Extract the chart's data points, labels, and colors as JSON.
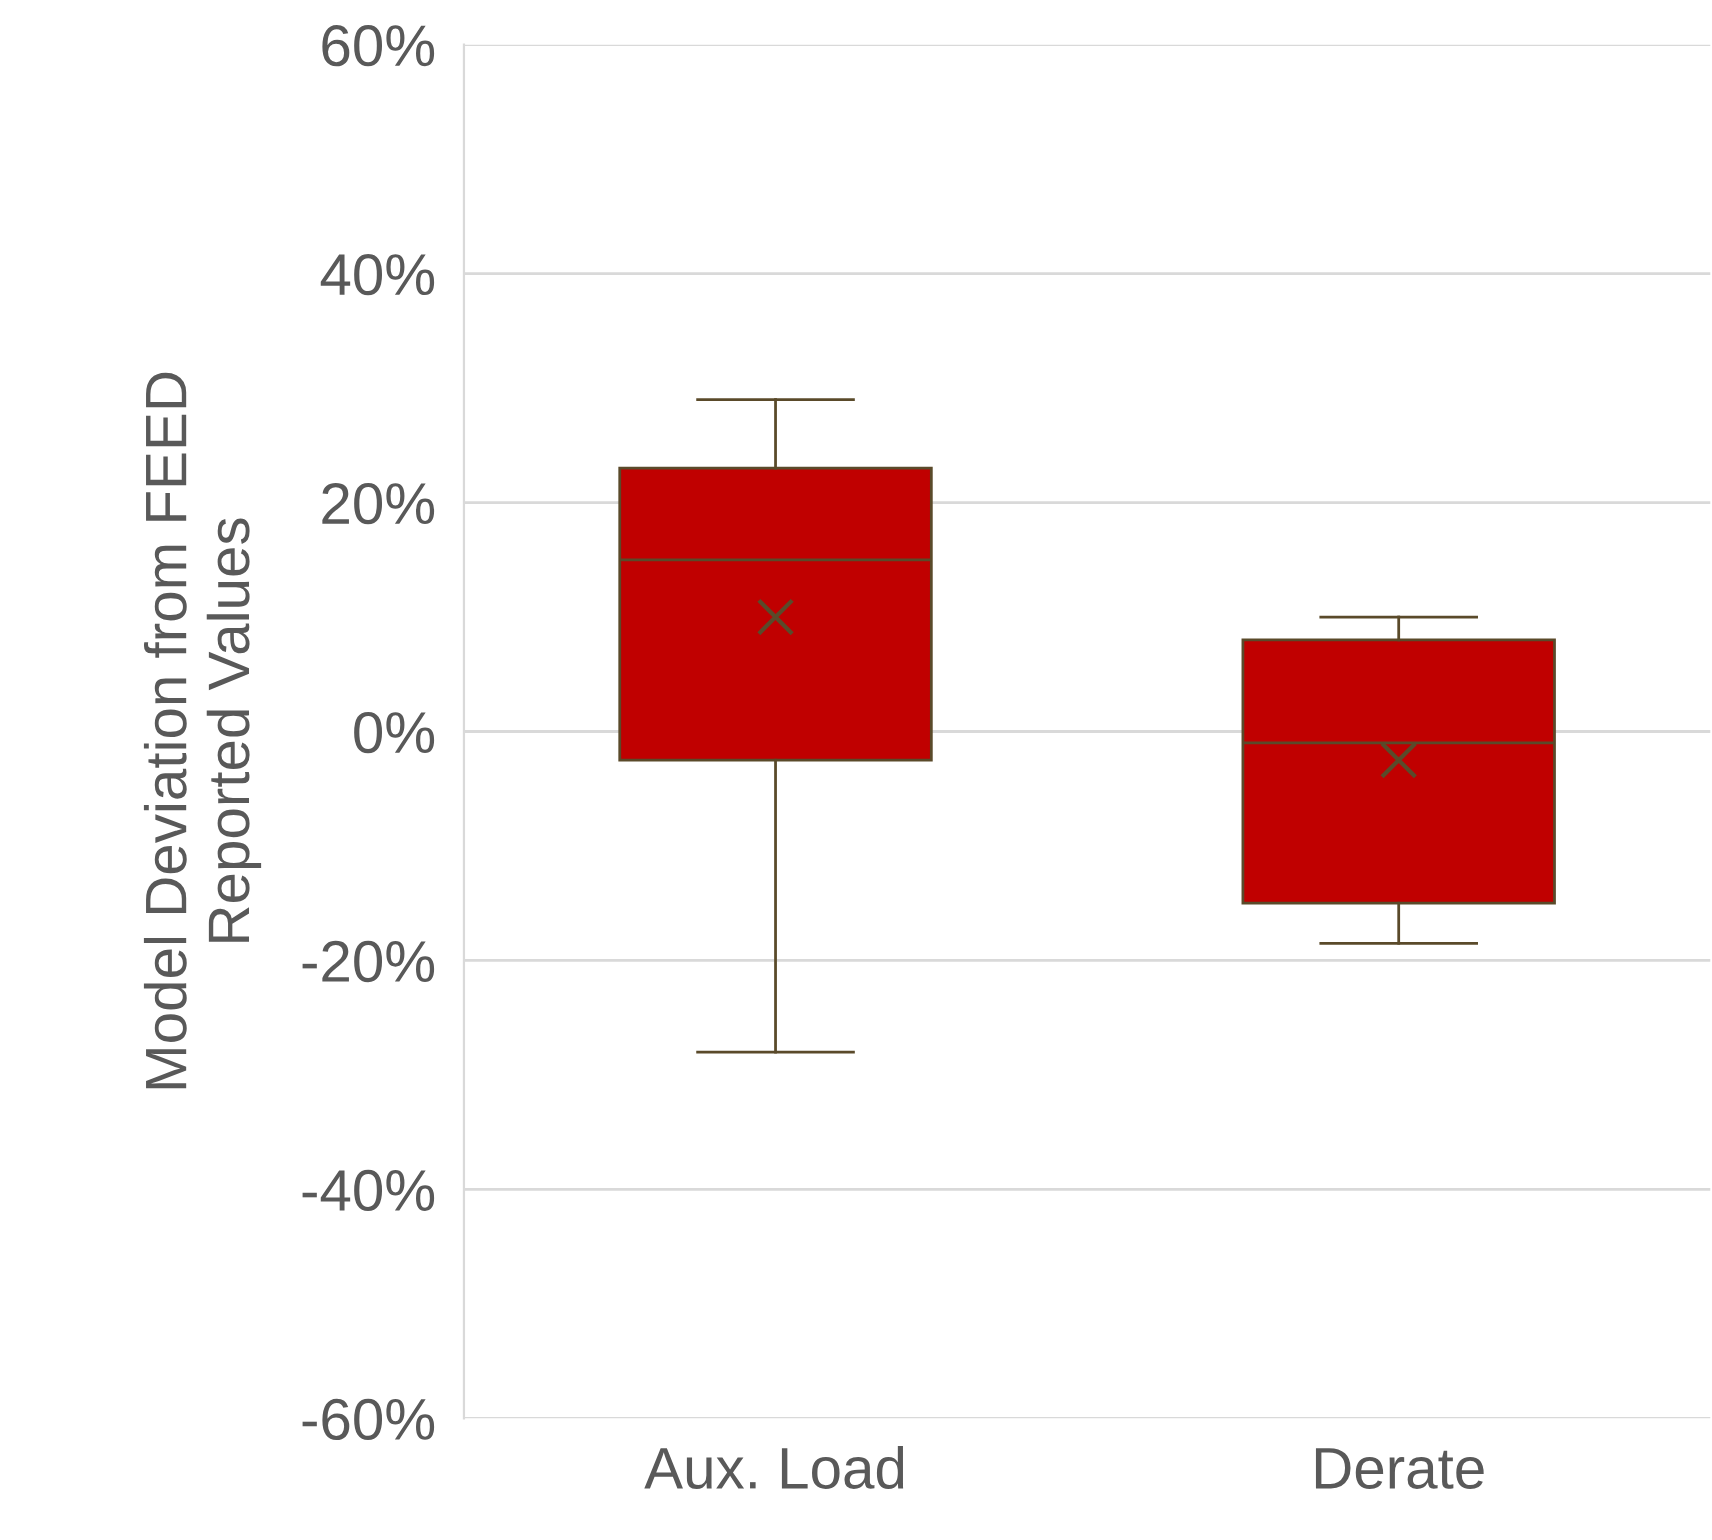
{
  "chart_data": {
    "type": "box",
    "ylabel": "Model Deviation from FEED\nReported Values",
    "categories": [
      "Aux. Load",
      "Derate"
    ],
    "boxes": [
      {
        "low": -28,
        "q1": -2.5,
        "median": 15,
        "q3": 23,
        "high": 29,
        "mean": 10
      },
      {
        "low": -18.5,
        "q1": -15,
        "median": -1,
        "q3": 8,
        "high": 10,
        "mean": -2.5
      }
    ],
    "color": "#c00000",
    "ylim": [
      -60,
      60
    ],
    "yticks": [
      {
        "value": -60,
        "label": "-60%"
      },
      {
        "value": -40,
        "label": "-40%"
      },
      {
        "value": -20,
        "label": "-20%"
      },
      {
        "value": 0,
        "label": "0%"
      },
      {
        "value": 20,
        "label": "20%"
      },
      {
        "value": 40,
        "label": "40%"
      },
      {
        "value": 60,
        "label": "60%"
      }
    ],
    "grid": "y"
  }
}
